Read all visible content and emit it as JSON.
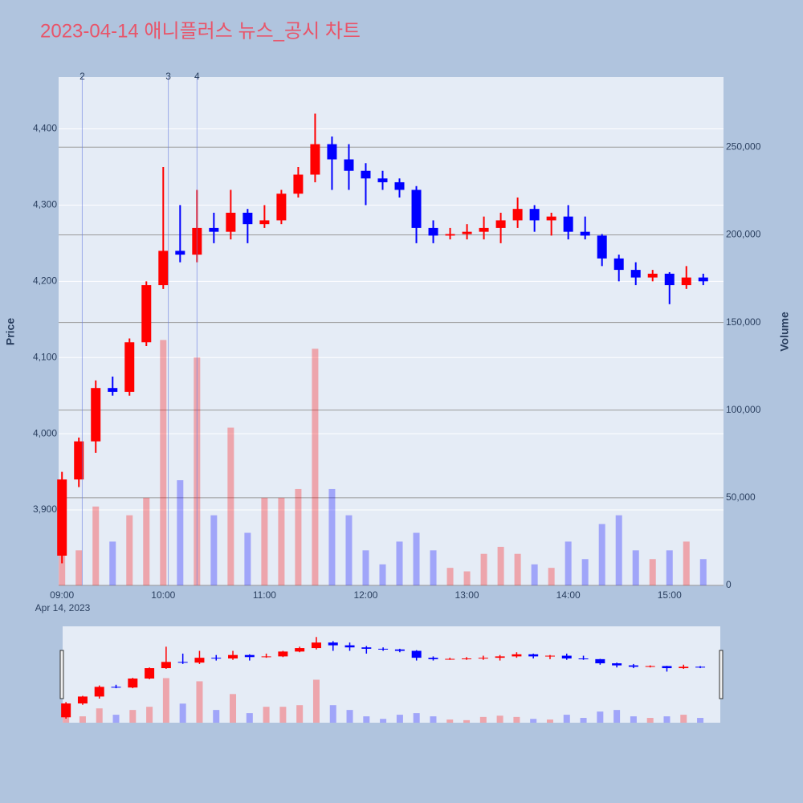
{
  "chart_data": {
    "type": "candlestick",
    "title": "2023-04-14 애니플러스 뉴스_공시 차트",
    "y_label": "Price",
    "y2_label": "Volume",
    "x_date_label": "Apr 14, 2023",
    "x": [
      "09:00",
      "09:10",
      "09:20",
      "09:30",
      "09:40",
      "09:50",
      "10:00",
      "10:10",
      "10:20",
      "10:30",
      "10:40",
      "10:50",
      "11:00",
      "11:10",
      "11:20",
      "11:30",
      "11:40",
      "11:50",
      "12:00",
      "12:10",
      "12:20",
      "12:30",
      "12:40",
      "12:50",
      "13:00",
      "13:10",
      "13:20",
      "13:30",
      "13:40",
      "13:50",
      "14:00",
      "14:10",
      "14:20",
      "14:30",
      "14:40",
      "14:50",
      "15:00",
      "15:10",
      "15:20"
    ],
    "open": [
      3840,
      3940,
      3990,
      4060,
      4055,
      4120,
      4195,
      4240,
      4235,
      4270,
      4265,
      4290,
      4275,
      4280,
      4315,
      4340,
      4380,
      4360,
      4345,
      4335,
      4330,
      4320,
      4270,
      4260,
      4262,
      4265,
      4270,
      4280,
      4295,
      4280,
      4285,
      4265,
      4260,
      4230,
      4215,
      4205,
      4210,
      4195,
      4205
    ],
    "high": [
      3950,
      3995,
      4070,
      4075,
      4125,
      4200,
      4350,
      4300,
      4320,
      4290,
      4320,
      4295,
      4300,
      4320,
      4350,
      4420,
      4390,
      4380,
      4355,
      4345,
      4335,
      4325,
      4280,
      4270,
      4275,
      4285,
      4290,
      4310,
      4300,
      4290,
      4300,
      4285,
      4262,
      4235,
      4225,
      4215,
      4212,
      4220,
      4210
    ],
    "low": [
      3830,
      3930,
      3975,
      4050,
      4050,
      4115,
      4190,
      4225,
      4225,
      4250,
      4255,
      4250,
      4270,
      4275,
      4310,
      4330,
      4320,
      4320,
      4300,
      4320,
      4310,
      4250,
      4250,
      4255,
      4255,
      4255,
      4250,
      4270,
      4265,
      4260,
      4255,
      4255,
      4220,
      4200,
      4195,
      4200,
      4170,
      4190,
      4195
    ],
    "close": [
      3940,
      3990,
      4060,
      4055,
      4120,
      4195,
      4240,
      4235,
      4270,
      4265,
      4290,
      4275,
      4280,
      4315,
      4340,
      4380,
      4360,
      4345,
      4335,
      4330,
      4320,
      4270,
      4260,
      4262,
      4265,
      4270,
      4280,
      4295,
      4280,
      4285,
      4265,
      4260,
      4230,
      4215,
      4205,
      4210,
      4195,
      4205,
      4200
    ],
    "volume": [
      30000,
      20000,
      45000,
      25000,
      40000,
      50000,
      140000,
      60000,
      130000,
      40000,
      90000,
      30000,
      50000,
      50000,
      55000,
      135000,
      55000,
      40000,
      20000,
      12000,
      25000,
      30000,
      20000,
      10000,
      8000,
      18000,
      22000,
      18000,
      12000,
      10000,
      25000,
      15000,
      35000,
      40000,
      20000,
      15000,
      20000,
      25000,
      15000
    ],
    "up_color": "#ff0000",
    "down_color": "#0000ff",
    "xlim": [
      "08:58",
      "15:32"
    ],
    "xticks": [
      "09:00",
      "10:00",
      "11:00",
      "12:00",
      "13:00",
      "14:00",
      "15:00"
    ],
    "ylim": [
      3801,
      4468
    ],
    "yticks": [
      {
        "value": 3900,
        "label": "3,900"
      },
      {
        "value": 4000,
        "label": "4,000"
      },
      {
        "value": 4100,
        "label": "4,100"
      },
      {
        "value": 4200,
        "label": "4,200"
      },
      {
        "value": 4300,
        "label": "4,300"
      },
      {
        "value": 4400,
        "label": "4,400"
      }
    ],
    "y2lim": [
      0,
      290000
    ],
    "y2ticks": [
      0,
      {
        "value": 50000,
        "label": "50,000"
      },
      {
        "value": 100000,
        "label": "100,000"
      },
      {
        "value": 150000,
        "label": "150,000"
      },
      {
        "value": 200000,
        "label": "200,000"
      },
      {
        "value": 250000,
        "label": "250,000"
      }
    ],
    "annotations": [
      {
        "x": "09:12",
        "label": "2"
      },
      {
        "x": "10:03",
        "label": "3"
      },
      {
        "x": "10:20",
        "label": "4"
      }
    ]
  }
}
